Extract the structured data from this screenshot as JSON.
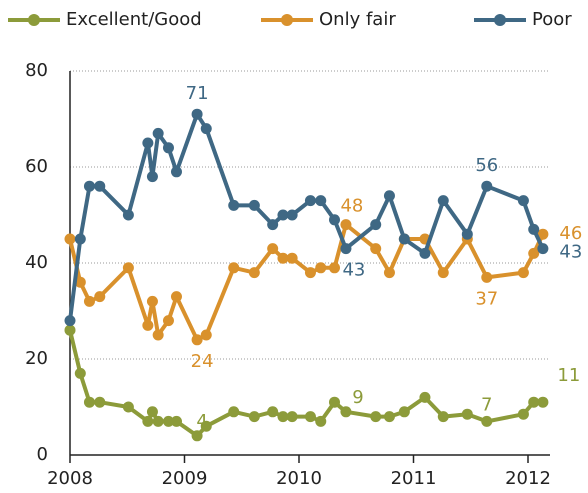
{
  "chart_data": {
    "type": "line",
    "x": [
      2008.0,
      2008.09,
      2008.17,
      2008.26,
      2008.51,
      2008.68,
      2008.72,
      2008.77,
      2008.86,
      2008.93,
      2009.11,
      2009.19,
      2009.43,
      2009.61,
      2009.77,
      2009.86,
      2009.94,
      2010.1,
      2010.19,
      2010.31,
      2010.41,
      2010.67,
      2010.79,
      2010.92,
      2011.1,
      2011.26,
      2011.47,
      2011.64,
      2011.96,
      2012.05,
      2012.13
    ],
    "series": [
      {
        "name": "Excellent/Good",
        "color": "#8c9b3a",
        "values": [
          26,
          17,
          11,
          11,
          10,
          7,
          9,
          7,
          7,
          7,
          4,
          6,
          9,
          8,
          9,
          8,
          8,
          8,
          7,
          11,
          9,
          8,
          8,
          9,
          12,
          8,
          8.5,
          7,
          8.5,
          11,
          11
        ],
        "value_labels": [
          null,
          null,
          null,
          null,
          null,
          null,
          null,
          null,
          null,
          null,
          "4",
          null,
          null,
          null,
          null,
          null,
          null,
          null,
          null,
          null,
          "9",
          null,
          null,
          null,
          null,
          null,
          null,
          "7",
          null,
          null,
          "11"
        ]
      },
      {
        "name": "Only fair",
        "color": "#d9912c",
        "values": [
          45,
          36,
          32,
          33,
          39,
          27,
          32,
          25,
          28,
          33,
          24,
          25,
          39,
          38,
          43,
          41,
          41,
          38,
          39,
          39,
          48,
          43,
          38,
          45,
          45,
          38,
          45,
          37,
          38,
          42,
          46
        ],
        "value_labels": [
          null,
          null,
          null,
          null,
          null,
          null,
          null,
          null,
          null,
          null,
          "24",
          null,
          null,
          null,
          null,
          null,
          null,
          null,
          null,
          null,
          "48",
          null,
          null,
          null,
          null,
          null,
          null,
          "37",
          null,
          null,
          "46"
        ]
      },
      {
        "name": "Poor",
        "color": "#3f6884",
        "values": [
          28,
          45,
          56,
          56,
          50,
          65,
          58,
          67,
          64,
          59,
          71,
          68,
          52,
          52,
          48,
          50,
          50,
          53,
          53,
          49,
          43,
          48,
          54,
          45,
          42,
          53,
          46,
          56,
          53,
          47,
          43
        ],
        "value_labels": [
          null,
          null,
          null,
          null,
          null,
          null,
          null,
          null,
          null,
          null,
          "71",
          null,
          null,
          null,
          null,
          null,
          null,
          null,
          null,
          null,
          "43",
          null,
          null,
          null,
          null,
          null,
          null,
          "56",
          null,
          null,
          "43"
        ]
      }
    ],
    "xlim": [
      2008,
      2012
    ],
    "xticks": [
      2008,
      2009,
      2010,
      2011,
      2012
    ],
    "ylim": [
      0,
      80
    ],
    "yticks": [
      0,
      20,
      40,
      60,
      80
    ],
    "grid": true,
    "legend": "top"
  }
}
